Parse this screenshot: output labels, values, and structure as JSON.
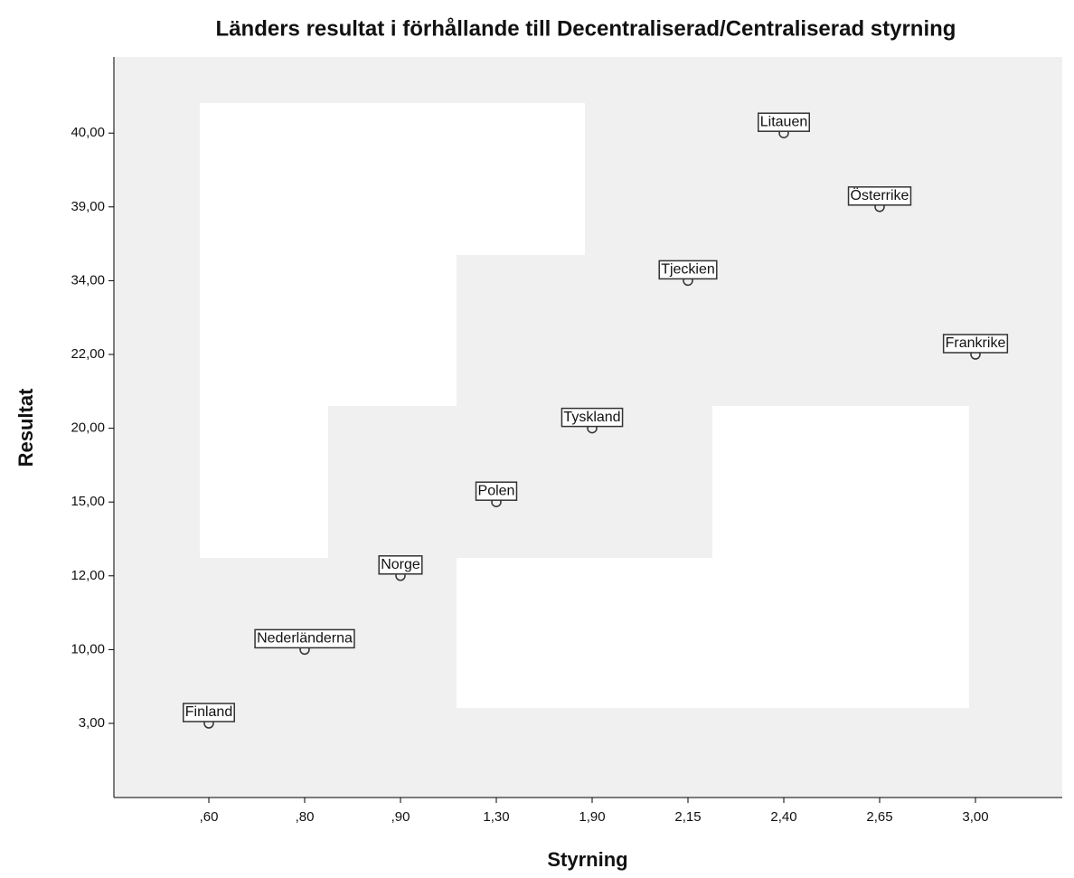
{
  "chart_data": {
    "type": "scatter",
    "title": "Länders resultat i förhållande till Decentraliserad/Centraliserad styrning",
    "xlabel": "Styrning",
    "ylabel": "Resultat",
    "x_categories": [
      ",60",
      ",80",
      ",90",
      "1,30",
      "1,90",
      "2,15",
      "2,40",
      "2,65",
      "3,00"
    ],
    "y_categories": [
      "3,00",
      "10,00",
      "12,00",
      "15,00",
      "20,00",
      "22,00",
      "34,00",
      "39,00",
      "40,00"
    ],
    "points": [
      {
        "label": "Finland",
        "x": ",60",
        "y": "3,00"
      },
      {
        "label": "Nederländerna",
        "x": ",80",
        "y": "10,00"
      },
      {
        "label": "Norge",
        "x": ",90",
        "y": "12,00"
      },
      {
        "label": "Polen",
        "x": "1,30",
        "y": "15,00"
      },
      {
        "label": "Tyskland",
        "x": "1,90",
        "y": "20,00"
      },
      {
        "label": "Tjeckien",
        "x": "2,15",
        "y": "34,00"
      },
      {
        "label": "Litauen",
        "x": "2,40",
        "y": "40,00"
      },
      {
        "label": "Österrike",
        "x": "2,65",
        "y": "39,00"
      },
      {
        "label": "Frankrike",
        "x": "3,00",
        "y": "22,00"
      }
    ]
  }
}
